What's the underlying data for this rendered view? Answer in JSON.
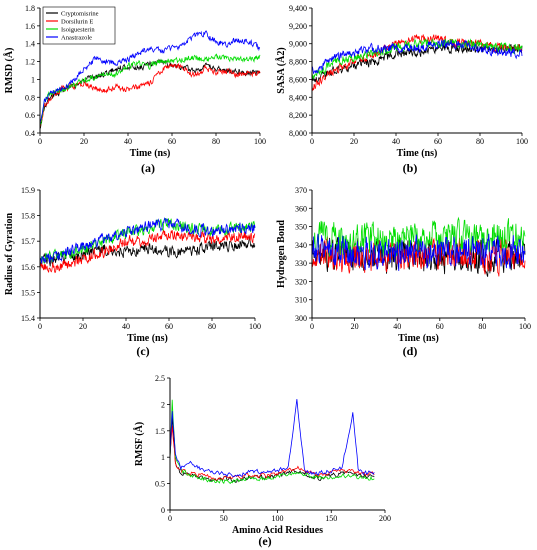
{
  "legend": [
    {
      "name": "Cryptomisrine",
      "color": "#000000"
    },
    {
      "name": "Dorsilurin E",
      "color": "#ff0000"
    },
    {
      "name": "Isoiguesterin",
      "color": "#00dd00"
    },
    {
      "name": "Anastrazole",
      "color": "#0000ff"
    }
  ],
  "chart_data": [
    {
      "panel": "(a)",
      "type": "line",
      "xlabel": "Time (ns)",
      "ylabel": "RMSD (Å)",
      "xlim": [
        0,
        100
      ],
      "ylim": [
        0.4,
        1.8
      ],
      "xticks": [
        "0",
        "20",
        "40",
        "60",
        "80",
        "100"
      ],
      "yticks": [
        "0.4",
        "0.6",
        "0.8",
        "1",
        "1.2",
        "1.4",
        "1.6",
        "1.8"
      ],
      "series": [
        {
          "name": "Cryptomisrine",
          "color": "#000000",
          "x": [
            0,
            2,
            5,
            10,
            15,
            20,
            25,
            30,
            35,
            40,
            45,
            50,
            55,
            60,
            65,
            70,
            75,
            80,
            85,
            90,
            95,
            100
          ],
          "y": [
            0.45,
            0.7,
            0.8,
            0.88,
            0.92,
            0.98,
            1.03,
            1.07,
            1.12,
            1.15,
            1.13,
            1.17,
            1.2,
            1.15,
            1.13,
            1.1,
            1.15,
            1.12,
            1.1,
            1.1,
            1.08,
            1.07
          ]
        },
        {
          "name": "Dorsilurin E",
          "color": "#ff0000",
          "x": [
            0,
            2,
            5,
            10,
            15,
            20,
            25,
            30,
            35,
            40,
            45,
            50,
            55,
            60,
            65,
            70,
            75,
            80,
            85,
            90,
            95,
            100
          ],
          "y": [
            0.45,
            0.7,
            0.8,
            0.9,
            0.92,
            0.95,
            0.9,
            0.88,
            0.92,
            0.88,
            0.92,
            0.95,
            1.1,
            1.17,
            1.12,
            1.05,
            1.12,
            1.08,
            1.1,
            1.05,
            1.08,
            1.06
          ]
        },
        {
          "name": "Isoiguesterin",
          "color": "#00dd00",
          "x": [
            0,
            2,
            5,
            10,
            15,
            20,
            25,
            30,
            35,
            40,
            45,
            50,
            55,
            60,
            65,
            70,
            75,
            80,
            85,
            90,
            95,
            100
          ],
          "y": [
            0.45,
            0.75,
            0.85,
            0.88,
            0.93,
            1.0,
            1.02,
            1.08,
            1.05,
            1.15,
            1.18,
            1.15,
            1.2,
            1.22,
            1.22,
            1.25,
            1.22,
            1.25,
            1.23,
            1.22,
            1.23,
            1.24
          ]
        },
        {
          "name": "Anastrazole",
          "color": "#0000ff",
          "x": [
            0,
            2,
            5,
            10,
            15,
            20,
            25,
            30,
            35,
            40,
            45,
            50,
            55,
            60,
            65,
            70,
            75,
            80,
            85,
            90,
            95,
            100
          ],
          "y": [
            0.5,
            0.75,
            0.85,
            0.9,
            0.98,
            1.12,
            1.22,
            1.2,
            1.18,
            1.22,
            1.3,
            1.35,
            1.32,
            1.35,
            1.38,
            1.5,
            1.52,
            1.42,
            1.4,
            1.45,
            1.42,
            1.35
          ]
        }
      ]
    },
    {
      "panel": "(b)",
      "type": "line",
      "xlabel": "Time (ns)",
      "ylabel": "SASA (Å2)",
      "xlim": [
        0,
        100
      ],
      "ylim": [
        8000,
        9400
      ],
      "xticks": [
        "0",
        "20",
        "40",
        "60",
        "80",
        "100"
      ],
      "yticks": [
        "8,000",
        "8,200",
        "8,400",
        "8,600",
        "8,800",
        "9,000",
        "9,200",
        "9,400"
      ],
      "series": [
        {
          "name": "Cryptomisrine",
          "color": "#000000",
          "x": [
            0,
            5,
            10,
            20,
            30,
            40,
            50,
            60,
            70,
            80,
            90,
            100
          ],
          "y": [
            8600,
            8650,
            8700,
            8750,
            8800,
            8900,
            8900,
            8950,
            8950,
            8950,
            8950,
            8950
          ]
        },
        {
          "name": "Dorsilurin E",
          "color": "#ff0000",
          "x": [
            0,
            5,
            10,
            20,
            30,
            40,
            50,
            60,
            70,
            80,
            90,
            100
          ],
          "y": [
            8500,
            8600,
            8700,
            8800,
            8900,
            9000,
            9050,
            9050,
            9000,
            9000,
            8950,
            8950
          ]
        },
        {
          "name": "Isoiguesterin",
          "color": "#00dd00",
          "x": [
            0,
            5,
            10,
            20,
            30,
            40,
            50,
            60,
            70,
            80,
            90,
            100
          ],
          "y": [
            8650,
            8700,
            8800,
            8850,
            8900,
            8950,
            9000,
            9000,
            9000,
            9000,
            8950,
            8950
          ]
        },
        {
          "name": "Anastrazole",
          "color": "#0000ff",
          "x": [
            0,
            5,
            10,
            20,
            30,
            40,
            50,
            60,
            70,
            80,
            90,
            100
          ],
          "y": [
            8700,
            8750,
            8850,
            8900,
            8950,
            8950,
            8950,
            9000,
            9000,
            8950,
            8900,
            8900
          ]
        }
      ]
    },
    {
      "panel": "(c)",
      "type": "line",
      "xlabel": "Time (ns)",
      "ylabel": "Radius of Gyration",
      "xlim": [
        0,
        100
      ],
      "ylim": [
        15.4,
        15.9
      ],
      "xticks": [
        "0",
        "20",
        "40",
        "60",
        "80",
        "100"
      ],
      "yticks": [
        "15.4",
        "15.5",
        "15.6",
        "15.7",
        "15.8",
        "15.9"
      ],
      "series": [
        {
          "name": "Cryptomisrine",
          "color": "#000000",
          "x": [
            0,
            10,
            20,
            30,
            40,
            50,
            60,
            70,
            80,
            90,
            100
          ],
          "y": [
            15.62,
            15.63,
            15.65,
            15.67,
            15.66,
            15.67,
            15.66,
            15.66,
            15.68,
            15.68,
            15.7
          ]
        },
        {
          "name": "Dorsilurin E",
          "color": "#ff0000",
          "x": [
            0,
            10,
            20,
            30,
            40,
            50,
            60,
            70,
            80,
            90,
            100
          ],
          "y": [
            15.6,
            15.6,
            15.63,
            15.66,
            15.7,
            15.7,
            15.73,
            15.72,
            15.71,
            15.72,
            15.72
          ]
        },
        {
          "name": "Isoiguesterin",
          "color": "#00dd00",
          "x": [
            0,
            10,
            20,
            30,
            40,
            50,
            60,
            70,
            80,
            90,
            100
          ],
          "y": [
            15.63,
            15.65,
            15.67,
            15.7,
            15.73,
            15.75,
            15.77,
            15.75,
            15.74,
            15.75,
            15.76
          ]
        },
        {
          "name": "Anastrazole",
          "color": "#0000ff",
          "x": [
            0,
            10,
            20,
            30,
            40,
            50,
            60,
            70,
            80,
            90,
            100
          ],
          "y": [
            15.62,
            15.65,
            15.68,
            15.71,
            15.74,
            15.76,
            15.77,
            15.75,
            15.74,
            15.75,
            15.75
          ]
        }
      ]
    },
    {
      "panel": "(d)",
      "type": "line",
      "xlabel": "Time (ns)",
      "ylabel": "Hydrogen Bond",
      "xlim": [
        0,
        100
      ],
      "ylim": [
        300,
        370
      ],
      "xticks": [
        "0",
        "20",
        "40",
        "60",
        "80",
        "100"
      ],
      "yticks": [
        "300",
        "310",
        "320",
        "330",
        "340",
        "350",
        "360",
        "370"
      ],
      "series": [
        {
          "name": "Cryptomisrine",
          "color": "#000000",
          "x": [
            0,
            20,
            40,
            60,
            80,
            100
          ],
          "y": [
            335,
            334,
            333,
            334,
            333,
            333
          ]
        },
        {
          "name": "Dorsilurin E",
          "color": "#ff0000",
          "x": [
            0,
            20,
            40,
            60,
            80,
            100
          ],
          "y": [
            335,
            334,
            335,
            335,
            334,
            333
          ]
        },
        {
          "name": "Isoiguesterin",
          "color": "#00dd00",
          "x": [
            0,
            20,
            40,
            60,
            80,
            100
          ],
          "y": [
            345,
            343,
            343,
            344,
            345,
            344
          ]
        },
        {
          "name": "Anastrazole",
          "color": "#0000ff",
          "x": [
            0,
            20,
            40,
            60,
            80,
            100
          ],
          "y": [
            337,
            335,
            336,
            336,
            337,
            336
          ]
        }
      ]
    },
    {
      "panel": "(e)",
      "type": "line",
      "xlabel": "Amino Acid Residues",
      "ylabel": "RMSF (Å)",
      "xlim": [
        0,
        200
      ],
      "ylim": [
        0,
        2.5
      ],
      "xticks": [
        "0",
        "50",
        "100",
        "150",
        "200"
      ],
      "yticks": [
        "0",
        "0.5",
        "1",
        "1.5",
        "2",
        "2.5"
      ],
      "series": [
        {
          "name": "Cryptomisrine",
          "color": "#000000",
          "x": [
            0,
            2,
            5,
            10,
            20,
            30,
            40,
            50,
            60,
            70,
            80,
            90,
            100,
            110,
            120,
            130,
            140,
            150,
            160,
            170,
            180,
            190
          ],
          "y": [
            1.0,
            1.8,
            0.9,
            0.7,
            0.65,
            0.6,
            0.55,
            0.6,
            0.55,
            0.6,
            0.65,
            0.6,
            0.65,
            0.7,
            0.75,
            0.65,
            0.6,
            0.65,
            0.7,
            0.7,
            0.65,
            0.65
          ]
        },
        {
          "name": "Dorsilurin E",
          "color": "#ff0000",
          "x": [
            0,
            2,
            5,
            10,
            20,
            30,
            40,
            50,
            60,
            70,
            80,
            90,
            100,
            110,
            120,
            130,
            140,
            150,
            160,
            170,
            180,
            190
          ],
          "y": [
            1.0,
            1.6,
            0.9,
            0.75,
            0.7,
            0.65,
            0.6,
            0.6,
            0.6,
            0.65,
            0.65,
            0.65,
            0.7,
            0.75,
            0.8,
            0.7,
            0.65,
            0.7,
            0.75,
            0.75,
            0.7,
            0.7
          ]
        },
        {
          "name": "Isoiguesterin",
          "color": "#00dd00",
          "x": [
            0,
            2,
            5,
            10,
            20,
            30,
            40,
            50,
            60,
            70,
            80,
            90,
            100,
            110,
            120,
            130,
            140,
            150,
            160,
            170,
            180,
            190
          ],
          "y": [
            1.0,
            2.1,
            1.0,
            0.75,
            0.65,
            0.6,
            0.55,
            0.55,
            0.55,
            0.6,
            0.6,
            0.6,
            0.65,
            0.7,
            0.7,
            0.65,
            0.6,
            0.6,
            0.65,
            0.65,
            0.6,
            0.6
          ]
        },
        {
          "name": "Anastrazole",
          "color": "#0000ff",
          "x": [
            0,
            2,
            5,
            10,
            20,
            30,
            40,
            50,
            60,
            70,
            80,
            90,
            100,
            110,
            118,
            125,
            130,
            140,
            150,
            160,
            170,
            175,
            180,
            190
          ],
          "y": [
            1.0,
            1.9,
            1.1,
            0.8,
            0.9,
            0.75,
            0.7,
            0.7,
            0.65,
            0.7,
            0.75,
            0.7,
            0.75,
            0.8,
            2.1,
            0.8,
            0.7,
            0.7,
            0.75,
            0.8,
            1.85,
            0.8,
            0.7,
            0.7
          ]
        }
      ]
    }
  ]
}
